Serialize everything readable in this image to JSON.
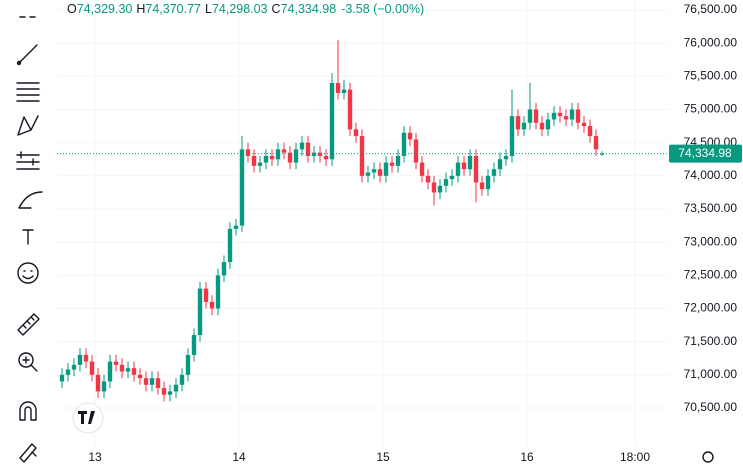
{
  "chart_data": {
    "type": "candlestick",
    "legend": [
      {
        "key": "O",
        "value": "74,329.30"
      },
      {
        "key": "H",
        "value": "74,370.77"
      },
      {
        "key": "L",
        "value": "74,298.03"
      },
      {
        "key": "C",
        "value": "74,334.98"
      }
    ],
    "change": "-3.58 (−0.00%)",
    "last_price_label": "74,334.98",
    "last_price": 74334.98,
    "up_color": "#089981",
    "down_color": "#f23645",
    "xlim": [
      -0.833,
      101
    ],
    "xticks": [
      {
        "value": 5.5,
        "label": "13"
      },
      {
        "value": 29.5,
        "label": "14"
      },
      {
        "value": 53.5,
        "label": "15"
      },
      {
        "value": 77.5,
        "label": "16"
      },
      {
        "value": 95.5,
        "label": "18:00"
      }
    ],
    "ylim": [
      69942,
      76651
    ],
    "yticks": [
      {
        "value": 70500,
        "label": "70,500.00"
      },
      {
        "value": 71000,
        "label": "71,000.00"
      },
      {
        "value": 71500,
        "label": "71,500.00"
      },
      {
        "value": 72000,
        "label": "72,000.00"
      },
      {
        "value": 72500,
        "label": "72,500.00"
      },
      {
        "value": 73000,
        "label": "73,000.00"
      },
      {
        "value": 73500,
        "label": "73,500.00"
      },
      {
        "value": 74000,
        "label": "74,000.00"
      },
      {
        "value": 74500,
        "label": "74,500.00"
      },
      {
        "value": 75000,
        "label": "75,000.00"
      },
      {
        "value": 75500,
        "label": "75,500.00"
      },
      {
        "value": 76000,
        "label": "76,000.00"
      },
      {
        "value": 76500,
        "label": "76,500.00"
      }
    ],
    "opens": [
      70900,
      71000,
      71080,
      71150,
      71300,
      71200,
      71000,
      70750,
      70900,
      71200,
      71150,
      71050,
      71100,
      71000,
      70950,
      70850,
      70950,
      70800,
      70700,
      70750,
      70850,
      71000,
      71300,
      71600,
      72300,
      72100,
      72000,
      72500,
      72700,
      73200,
      73250,
      74400,
      74300,
      74150,
      74200,
      74300,
      74250,
      74400,
      74350,
      74200,
      74400,
      74500,
      74300,
      74350,
      74300,
      74250,
      75400,
      75250,
      75300,
      74700,
      74600,
      74000,
      74050,
      74100,
      74000,
      74200,
      74150,
      74300,
      74650,
      74550,
      74200,
      74000,
      73900,
      73750,
      73850,
      73950,
      74000,
      74200,
      74100,
      74300,
      73900,
      73800,
      74000,
      74100,
      74250,
      74300,
      74900,
      74700,
      74800,
      75000,
      74800,
      74700,
      74850,
      74950,
      74900,
      74850,
      75000,
      74800,
      74750,
      74600,
      74329.3
    ],
    "highs": [
      71100,
      71180,
      71250,
      71400,
      71400,
      71300,
      71100,
      71000,
      71300,
      71300,
      71250,
      71200,
      71200,
      71100,
      71050,
      71050,
      71050,
      70900,
      70850,
      70950,
      71100,
      71400,
      71700,
      72400,
      72400,
      72200,
      72600,
      72800,
      73300,
      73350,
      74600,
      74500,
      74400,
      74300,
      74400,
      74400,
      74500,
      74500,
      74450,
      74500,
      74600,
      74600,
      74450,
      74450,
      74400,
      75550,
      76050,
      75450,
      75400,
      74800,
      74700,
      74150,
      74200,
      74200,
      74300,
      74300,
      74400,
      74750,
      74750,
      74650,
      74300,
      74100,
      74000,
      73950,
      74050,
      74100,
      74300,
      74300,
      74400,
      74400,
      74000,
      74100,
      74200,
      74350,
      74400,
      75300,
      75000,
      74900,
      75400,
      75100,
      74900,
      74950,
      75050,
      75050,
      75000,
      75100,
      75100,
      74900,
      74850,
      74700,
      74370.77
    ],
    "lows": [
      70800,
      70900,
      70980,
      71050,
      71100,
      70900,
      70650,
      70650,
      70800,
      71050,
      70950,
      70950,
      70900,
      70850,
      70750,
      70750,
      70700,
      70600,
      70600,
      70650,
      70750,
      70900,
      71200,
      71500,
      72000,
      71900,
      71900,
      72400,
      72600,
      73100,
      73150,
      74200,
      74050,
      74050,
      74100,
      74150,
      74150,
      74250,
      74100,
      74100,
      74300,
      74200,
      74200,
      74200,
      74150,
      74150,
      75150,
      75150,
      74600,
      74500,
      73900,
      73900,
      73950,
      73900,
      73900,
      74050,
      74050,
      74200,
      74450,
      74100,
      73900,
      73800,
      73550,
      73650,
      73750,
      73850,
      73900,
      74000,
      74000,
      73600,
      73700,
      73700,
      73900,
      74000,
      74150,
      74200,
      74600,
      74600,
      74700,
      74700,
      74600,
      74600,
      74750,
      74800,
      74750,
      74750,
      74700,
      74650,
      74500,
      74300,
      74298.03
    ],
    "closes": [
      71000,
      71080,
      71150,
      71300,
      71200,
      71000,
      70750,
      70900,
      71200,
      71150,
      71050,
      71100,
      71000,
      70950,
      70850,
      70950,
      70800,
      70700,
      70750,
      70850,
      71000,
      71300,
      71600,
      72300,
      72100,
      72000,
      72500,
      72700,
      73200,
      73250,
      74400,
      74300,
      74150,
      74200,
      74300,
      74250,
      74400,
      74350,
      74200,
      74400,
      74500,
      74300,
      74350,
      74300,
      74250,
      75400,
      75250,
      75300,
      74700,
      74600,
      74000,
      74050,
      74100,
      74000,
      74200,
      74150,
      74300,
      74650,
      74550,
      74200,
      74000,
      73900,
      73750,
      73850,
      73950,
      74000,
      74200,
      74100,
      74300,
      73900,
      73800,
      74000,
      74100,
      74250,
      74300,
      74900,
      74700,
      74800,
      75000,
      74800,
      74700,
      74850,
      74950,
      74900,
      74850,
      75000,
      74800,
      74750,
      74600,
      74400,
      74334.98
    ]
  }
}
